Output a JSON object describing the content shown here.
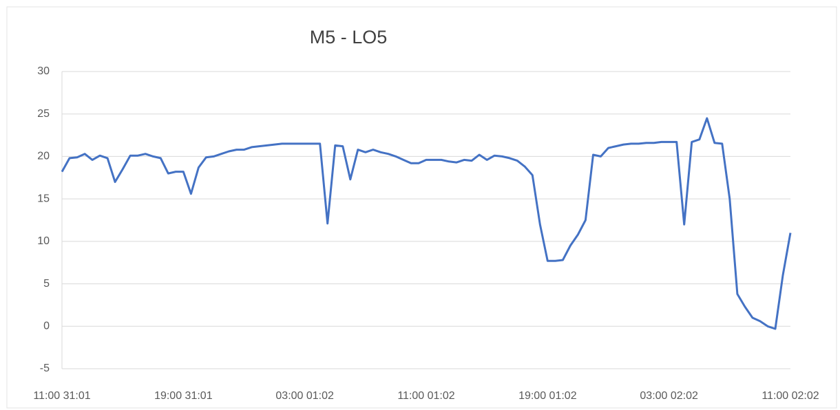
{
  "chart_data": {
    "type": "line",
    "title": "M5  - LO5",
    "categories": [
      "11:00 31:01",
      null,
      null,
      null,
      null,
      null,
      null,
      null,
      null,
      null,
      null,
      null,
      null,
      null,
      null,
      null,
      "19:00 31:01",
      null,
      null,
      null,
      null,
      null,
      null,
      null,
      null,
      null,
      null,
      null,
      null,
      null,
      null,
      null,
      "03:00 01:02",
      null,
      null,
      null,
      null,
      null,
      null,
      null,
      null,
      null,
      null,
      null,
      null,
      null,
      null,
      null,
      "11:00 01:02",
      null,
      null,
      null,
      null,
      null,
      null,
      null,
      null,
      null,
      null,
      null,
      null,
      null,
      null,
      null,
      "19:00 01:02",
      null,
      null,
      null,
      null,
      null,
      null,
      null,
      null,
      null,
      null,
      null,
      null,
      null,
      null,
      null,
      "03:00 02:02",
      null,
      null,
      null,
      null,
      null,
      null,
      null,
      null,
      null,
      null,
      null,
      null,
      null,
      null,
      null,
      "11:00 02:02"
    ],
    "values": [
      18.2,
      19.8,
      19.9,
      20.3,
      19.6,
      20.1,
      19.8,
      17.0,
      18.5,
      20.1,
      20.1,
      20.3,
      20.0,
      19.8,
      18.0,
      18.2,
      18.2,
      15.6,
      18.7,
      19.9,
      20.0,
      20.3,
      20.6,
      20.8,
      20.8,
      21.1,
      21.2,
      21.3,
      21.4,
      21.5,
      21.5,
      21.5,
      21.5,
      21.5,
      21.5,
      12.1,
      21.3,
      21.2,
      17.3,
      20.8,
      20.5,
      20.8,
      20.5,
      20.3,
      20.0,
      19.6,
      19.2,
      19.2,
      19.6,
      19.6,
      19.6,
      19.4,
      19.3,
      19.6,
      19.5,
      20.2,
      19.6,
      20.1,
      20.0,
      19.8,
      19.5,
      18.8,
      17.8,
      12.0,
      7.7,
      7.7,
      7.8,
      9.5,
      10.8,
      12.5,
      20.2,
      20.0,
      21.0,
      21.2,
      21.4,
      21.5,
      21.5,
      21.6,
      21.6,
      21.7,
      21.7,
      21.7,
      12.0,
      21.7,
      22.0,
      24.5,
      21.6,
      21.5,
      15.0,
      3.8,
      2.3,
      1.0,
      0.6,
      0.0,
      -0.3,
      6.0,
      11.0
    ],
    "color": "#4472c4",
    "ylim": [
      -5,
      30
    ],
    "yticks": [
      -5,
      0,
      5,
      10,
      15,
      20,
      25,
      30
    ],
    "grid": true
  }
}
